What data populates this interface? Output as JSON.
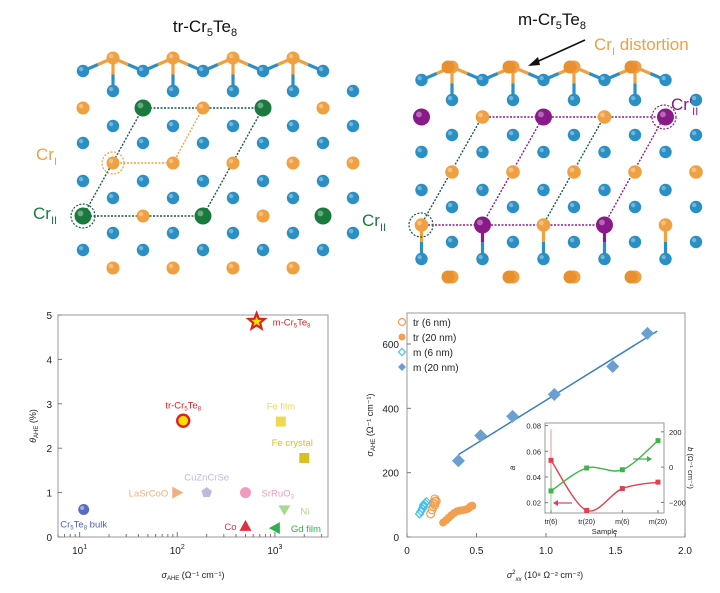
{
  "panels": {
    "tr_structure": {
      "title_main": "tr-Cr",
      "title_sub1": "5",
      "title_mid": "Te",
      "title_sub2": "8",
      "label_cr1": "Cr",
      "label_cr1_sub": "I",
      "label_cr2": "Cr",
      "label_cr2_sub": "II"
    },
    "m_structure": {
      "title_main": "m-Cr",
      "title_sub1": "5",
      "title_mid": "Te",
      "title_sub2": "8",
      "annotation": "Cr",
      "annotation_sub": "I",
      "annotation_rest": " distortion",
      "label_cr2": "Cr",
      "label_cr2_sub": "II",
      "label_cr2p": "Cr′",
      "label_cr2p_sub": "II"
    }
  },
  "colors": {
    "te_blue": "#2a8fc4",
    "cr1_orange": "#f0a040",
    "cr2_green": "#1a7a3e",
    "cr2p_purple": "#8a1a8a",
    "red": "#e02020",
    "fit_blue": "#3a7fc0",
    "inset_red": "#e04050",
    "inset_green": "#3db54a"
  },
  "chart_data": [
    {
      "type": "scatter",
      "title": "",
      "xlabel": "σAHE (Ω⁻¹ cm⁻¹)",
      "xlabel_main": "σ",
      "xlabel_sub": "AHE",
      "xlabel_units": "(Ω⁻¹ cm⁻¹)",
      "ylabel": "θAHE (%)",
      "ylabel_main": "θ",
      "ylabel_sub": "AHE",
      "ylabel_units": "(%)",
      "xscale": "log",
      "xlim": [
        6,
        3500
      ],
      "ylim": [
        0,
        5
      ],
      "xticks": [
        {
          "v": 10,
          "base": "10",
          "exp": "1"
        },
        {
          "v": 100,
          "base": "10",
          "exp": "2"
        },
        {
          "v": 1000,
          "base": "10",
          "exp": "3"
        }
      ],
      "yticks": [
        0,
        1,
        2,
        3,
        4,
        5
      ],
      "grid": false,
      "points": [
        {
          "name": "m-Cr5Te8",
          "label": "m-Cr",
          "sub": "5",
          "label2": "Te",
          "sub2": "8",
          "x": 650,
          "y": 4.85,
          "marker": "star",
          "color": "#e02020",
          "fill": "#f5e000",
          "label_pos": "right"
        },
        {
          "name": "tr-Cr5Te8",
          "label": "tr-Cr",
          "sub": "5",
          "label2": "Te",
          "sub2": "8",
          "x": 115,
          "y": 2.62,
          "marker": "circle-big",
          "color": "#e02020",
          "fill": "#f5e000",
          "label_pos": "above"
        },
        {
          "name": "Fe film",
          "label": "Fe film",
          "x": 1150,
          "y": 2.6,
          "marker": "square",
          "color": "#f0d850",
          "fill": "#f0d850",
          "label_pos": "above"
        },
        {
          "name": "Fe crystal",
          "label": "Fe crystal",
          "x": 2000,
          "y": 1.78,
          "marker": "square",
          "color": "#d8c020",
          "fill": "#d8c020",
          "label_pos": "above"
        },
        {
          "name": "CuZnCrSe",
          "label": "CuZnCrSe",
          "x": 200,
          "y": 1.0,
          "marker": "pentagon",
          "color": "#b8bce0",
          "fill": "#b8bce0",
          "label_pos": "above"
        },
        {
          "name": "LaSrCoO",
          "label": "LaSrCoO",
          "x": 100,
          "y": 1.0,
          "marker": "triangle-right",
          "color": "#f0b080",
          "fill": "#f0b080",
          "label_pos": "left"
        },
        {
          "name": "SrRuO3",
          "label": "SrRuO",
          "sub": "3",
          "x": 500,
          "y": 1.0,
          "marker": "circle",
          "color": "#f09ac0",
          "fill": "#f09ac0",
          "label_pos": "right"
        },
        {
          "name": "Ni",
          "label": "Ni",
          "x": 1250,
          "y": 0.6,
          "marker": "triangle-down",
          "color": "#a8d890",
          "fill": "#a8d890",
          "label_pos": "right"
        },
        {
          "name": "Co",
          "label": "Co",
          "x": 500,
          "y": 0.25,
          "marker": "triangle-up",
          "color": "#e03040",
          "fill": "#e03040",
          "label_pos": "left"
        },
        {
          "name": "Gd film",
          "label": "Gd film",
          "x": 1000,
          "y": 0.2,
          "marker": "triangle-left",
          "color": "#30b050",
          "fill": "#30b050",
          "label_pos": "right"
        },
        {
          "name": "Cr5Te8 bulk",
          "label": "Cr",
          "sub": "5",
          "label2": "Te",
          "sub2": "8",
          "label3": " bulk",
          "x": 11,
          "y": 0.62,
          "marker": "sphere",
          "color": "#5060b0",
          "fill": "#5a6cc0",
          "label_pos": "below"
        }
      ]
    },
    {
      "type": "scatter",
      "title": "",
      "xlabel": "σ²xx (10⁸ Ω⁻² cm⁻²)",
      "xlabel_main": "σ",
      "xlabel_sup": "2",
      "xlabel_sub": "xx",
      "xlabel_units": "(10⁸ Ω⁻² cm⁻²)",
      "ylabel": "σAHE (Ω⁻¹ cm⁻¹)",
      "ylabel_main": "σ",
      "ylabel_sub": "AHE",
      "ylabel_units": "(Ω⁻¹ cm⁻¹)",
      "xlim": [
        0,
        2.0
      ],
      "ylim": [
        0,
        700
      ],
      "xticks": [
        "0",
        "0.5",
        "1.0",
        "1.5",
        "2.0"
      ],
      "xtick_values": [
        0,
        0.5,
        1.0,
        1.5,
        2.0
      ],
      "yticks": [
        0,
        200,
        400,
        600
      ],
      "grid": false,
      "legend_position": "top-left",
      "series": [
        {
          "name": "tr (6 nm)",
          "marker": "circle-open",
          "color": "#f0a050",
          "x": [
            0.17,
            0.18,
            0.19,
            0.19,
            0.2,
            0.2,
            0.21,
            0.2
          ],
          "y": [
            72,
            85,
            95,
            105,
            110,
            118,
            112,
            100
          ]
        },
        {
          "name": "tr (20 nm)",
          "marker": "circle-filled",
          "color": "#f0a050",
          "x": [
            0.26,
            0.28,
            0.3,
            0.32,
            0.34,
            0.36,
            0.38,
            0.4,
            0.42,
            0.44,
            0.45,
            0.46,
            0.47
          ],
          "y": [
            45,
            52,
            60,
            68,
            75,
            80,
            82,
            83,
            85,
            88,
            92,
            96,
            97
          ]
        },
        {
          "name": "m (6 nm)",
          "marker": "diamond-open",
          "color": "#40c0f0",
          "x": [
            0.09,
            0.1,
            0.11,
            0.12,
            0.12,
            0.13,
            0.14
          ],
          "y": [
            72,
            80,
            88,
            95,
            100,
            105,
            110
          ]
        },
        {
          "name": "m (20 nm)",
          "marker": "diamond-filled",
          "color": "#6a9fd0",
          "x": [
            0.37,
            0.53,
            0.76,
            1.06,
            1.48,
            1.73
          ],
          "y": [
            237,
            315,
            375,
            443,
            530,
            633
          ]
        }
      ],
      "fit_line": {
        "x": [
          0.37,
          1.8
        ],
        "y": [
          256,
          640
        ],
        "color": "#3a7fc0"
      },
      "inset": {
        "xlabel": "Sample",
        "categories": [
          "tr(6)",
          "tr(20)",
          "m(6)",
          "m(20)"
        ],
        "left_axis": {
          "label": "a",
          "ticks": [
            "0.08",
            "0.06",
            "0.04",
            "0.02"
          ],
          "tick_values": [
            0.08,
            0.06,
            0.04,
            0.02
          ],
          "ylim": [
            0.012,
            0.082
          ]
        },
        "right_axis": {
          "label": "b (Ω⁻¹ cm⁻¹)",
          "label_main": "b",
          "label_units": "(Ω⁻¹ cm⁻¹)",
          "ticks": [
            "200",
            "0",
            "−200"
          ],
          "tick_values": [
            200,
            0,
            -200
          ],
          "ylim": [
            -260,
            250
          ]
        },
        "series": [
          {
            "name": "a",
            "axis": "left",
            "color": "#e04050",
            "values": [
              0.053,
              0.014,
              0.031,
              0.036
            ],
            "errors": [
              0.024,
              0.001,
              0.001,
              0.002
            ]
          },
          {
            "name": "b",
            "axis": "right",
            "color": "#3db54a",
            "values": [
              -135,
              -5,
              -15,
              150
            ],
            "errors": [
              120,
              5,
              5,
              15
            ]
          }
        ]
      }
    }
  ]
}
